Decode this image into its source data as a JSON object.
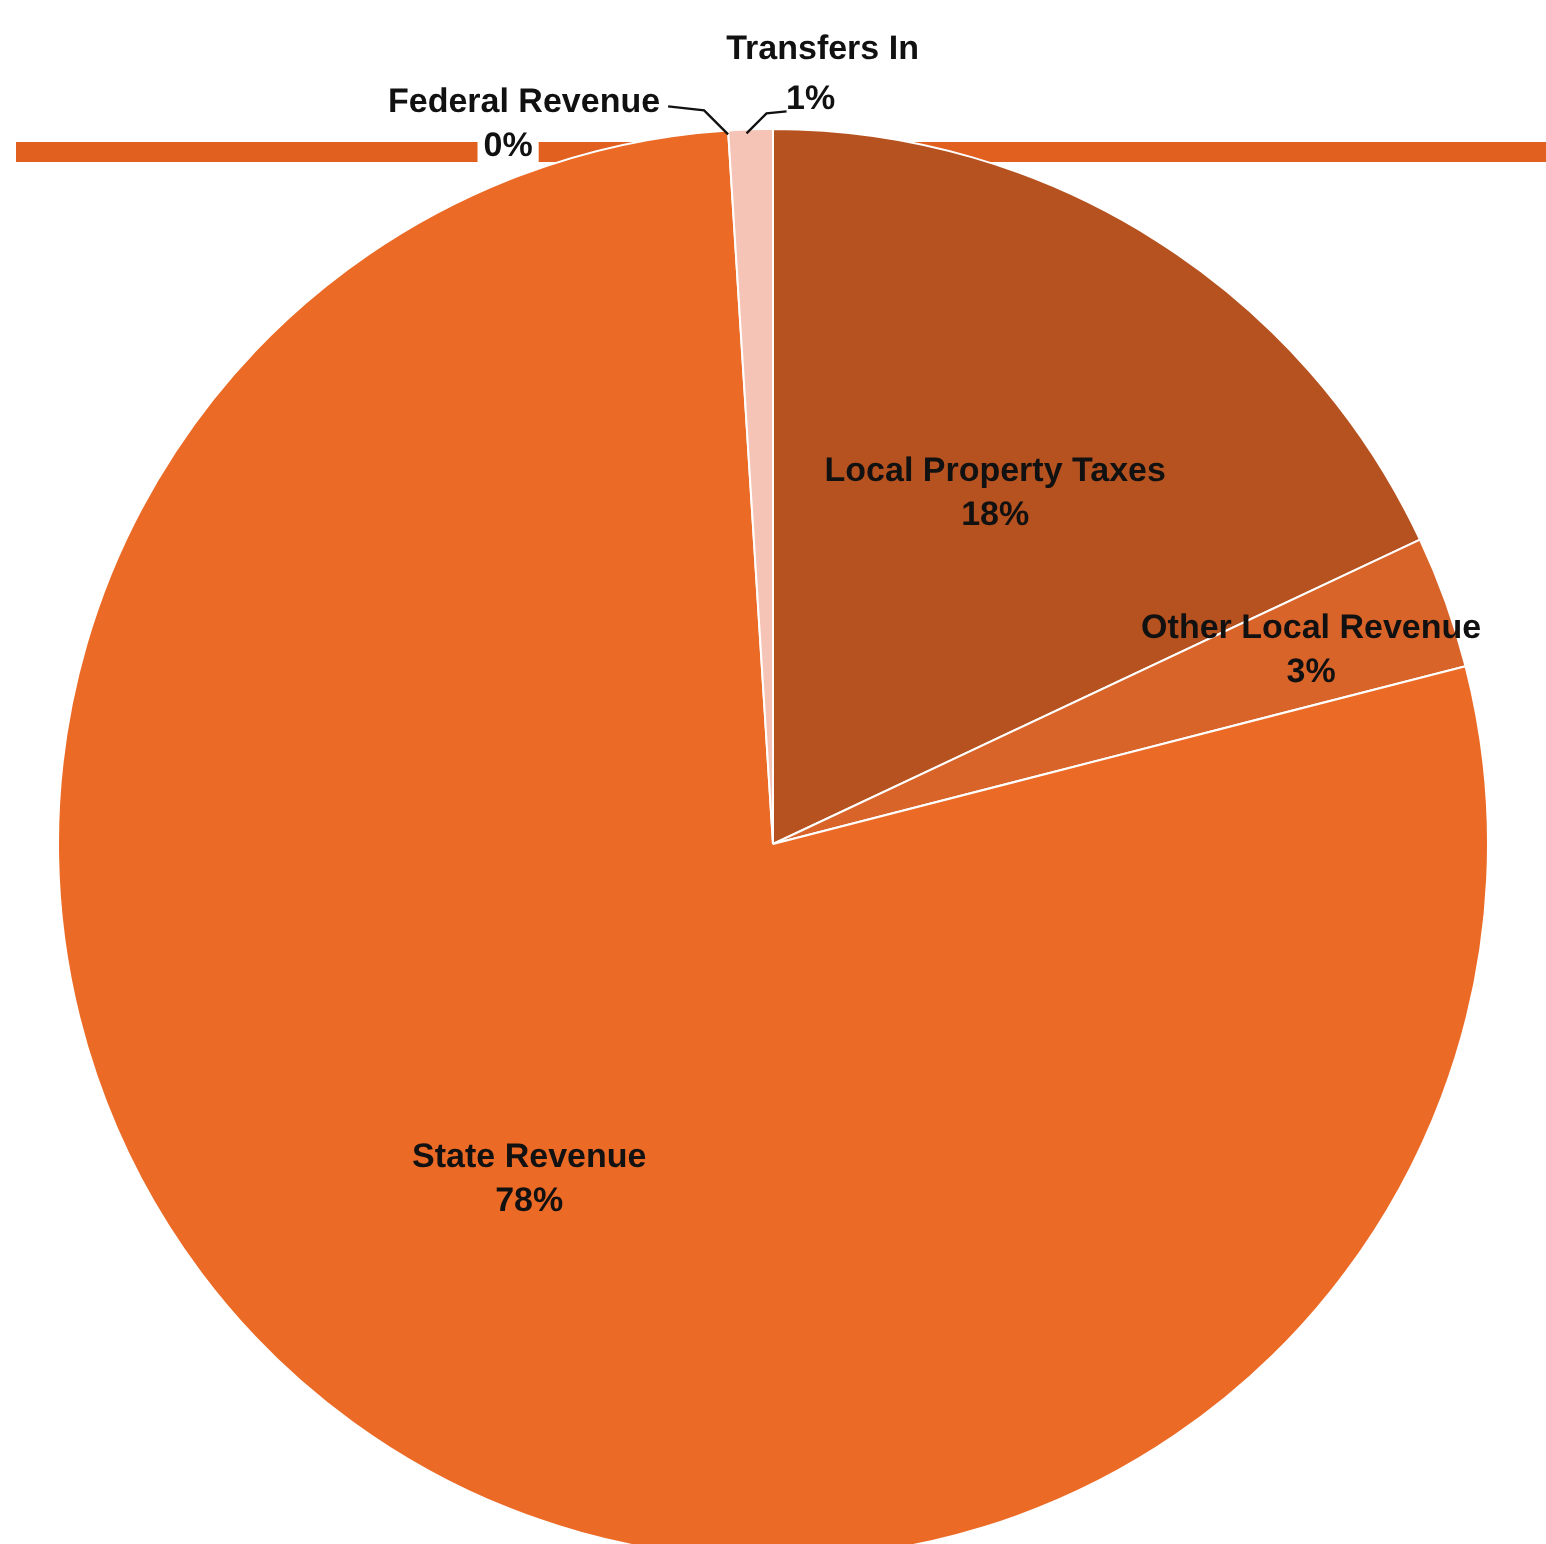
{
  "chart_data": {
    "type": "pie",
    "categories": [
      "Local Property Taxes",
      "Other Local Revenue",
      "State Revenue",
      "Federal Revenue",
      "Transfers In"
    ],
    "values": [
      18,
      3,
      78,
      0,
      1
    ],
    "value_labels": [
      "18%",
      "3%",
      "78%",
      "0%",
      "1%"
    ],
    "colors": [
      "#b5521f",
      "#d9642a",
      "#eb6a26",
      "#f09a70",
      "#f6c4b6"
    ]
  }
}
